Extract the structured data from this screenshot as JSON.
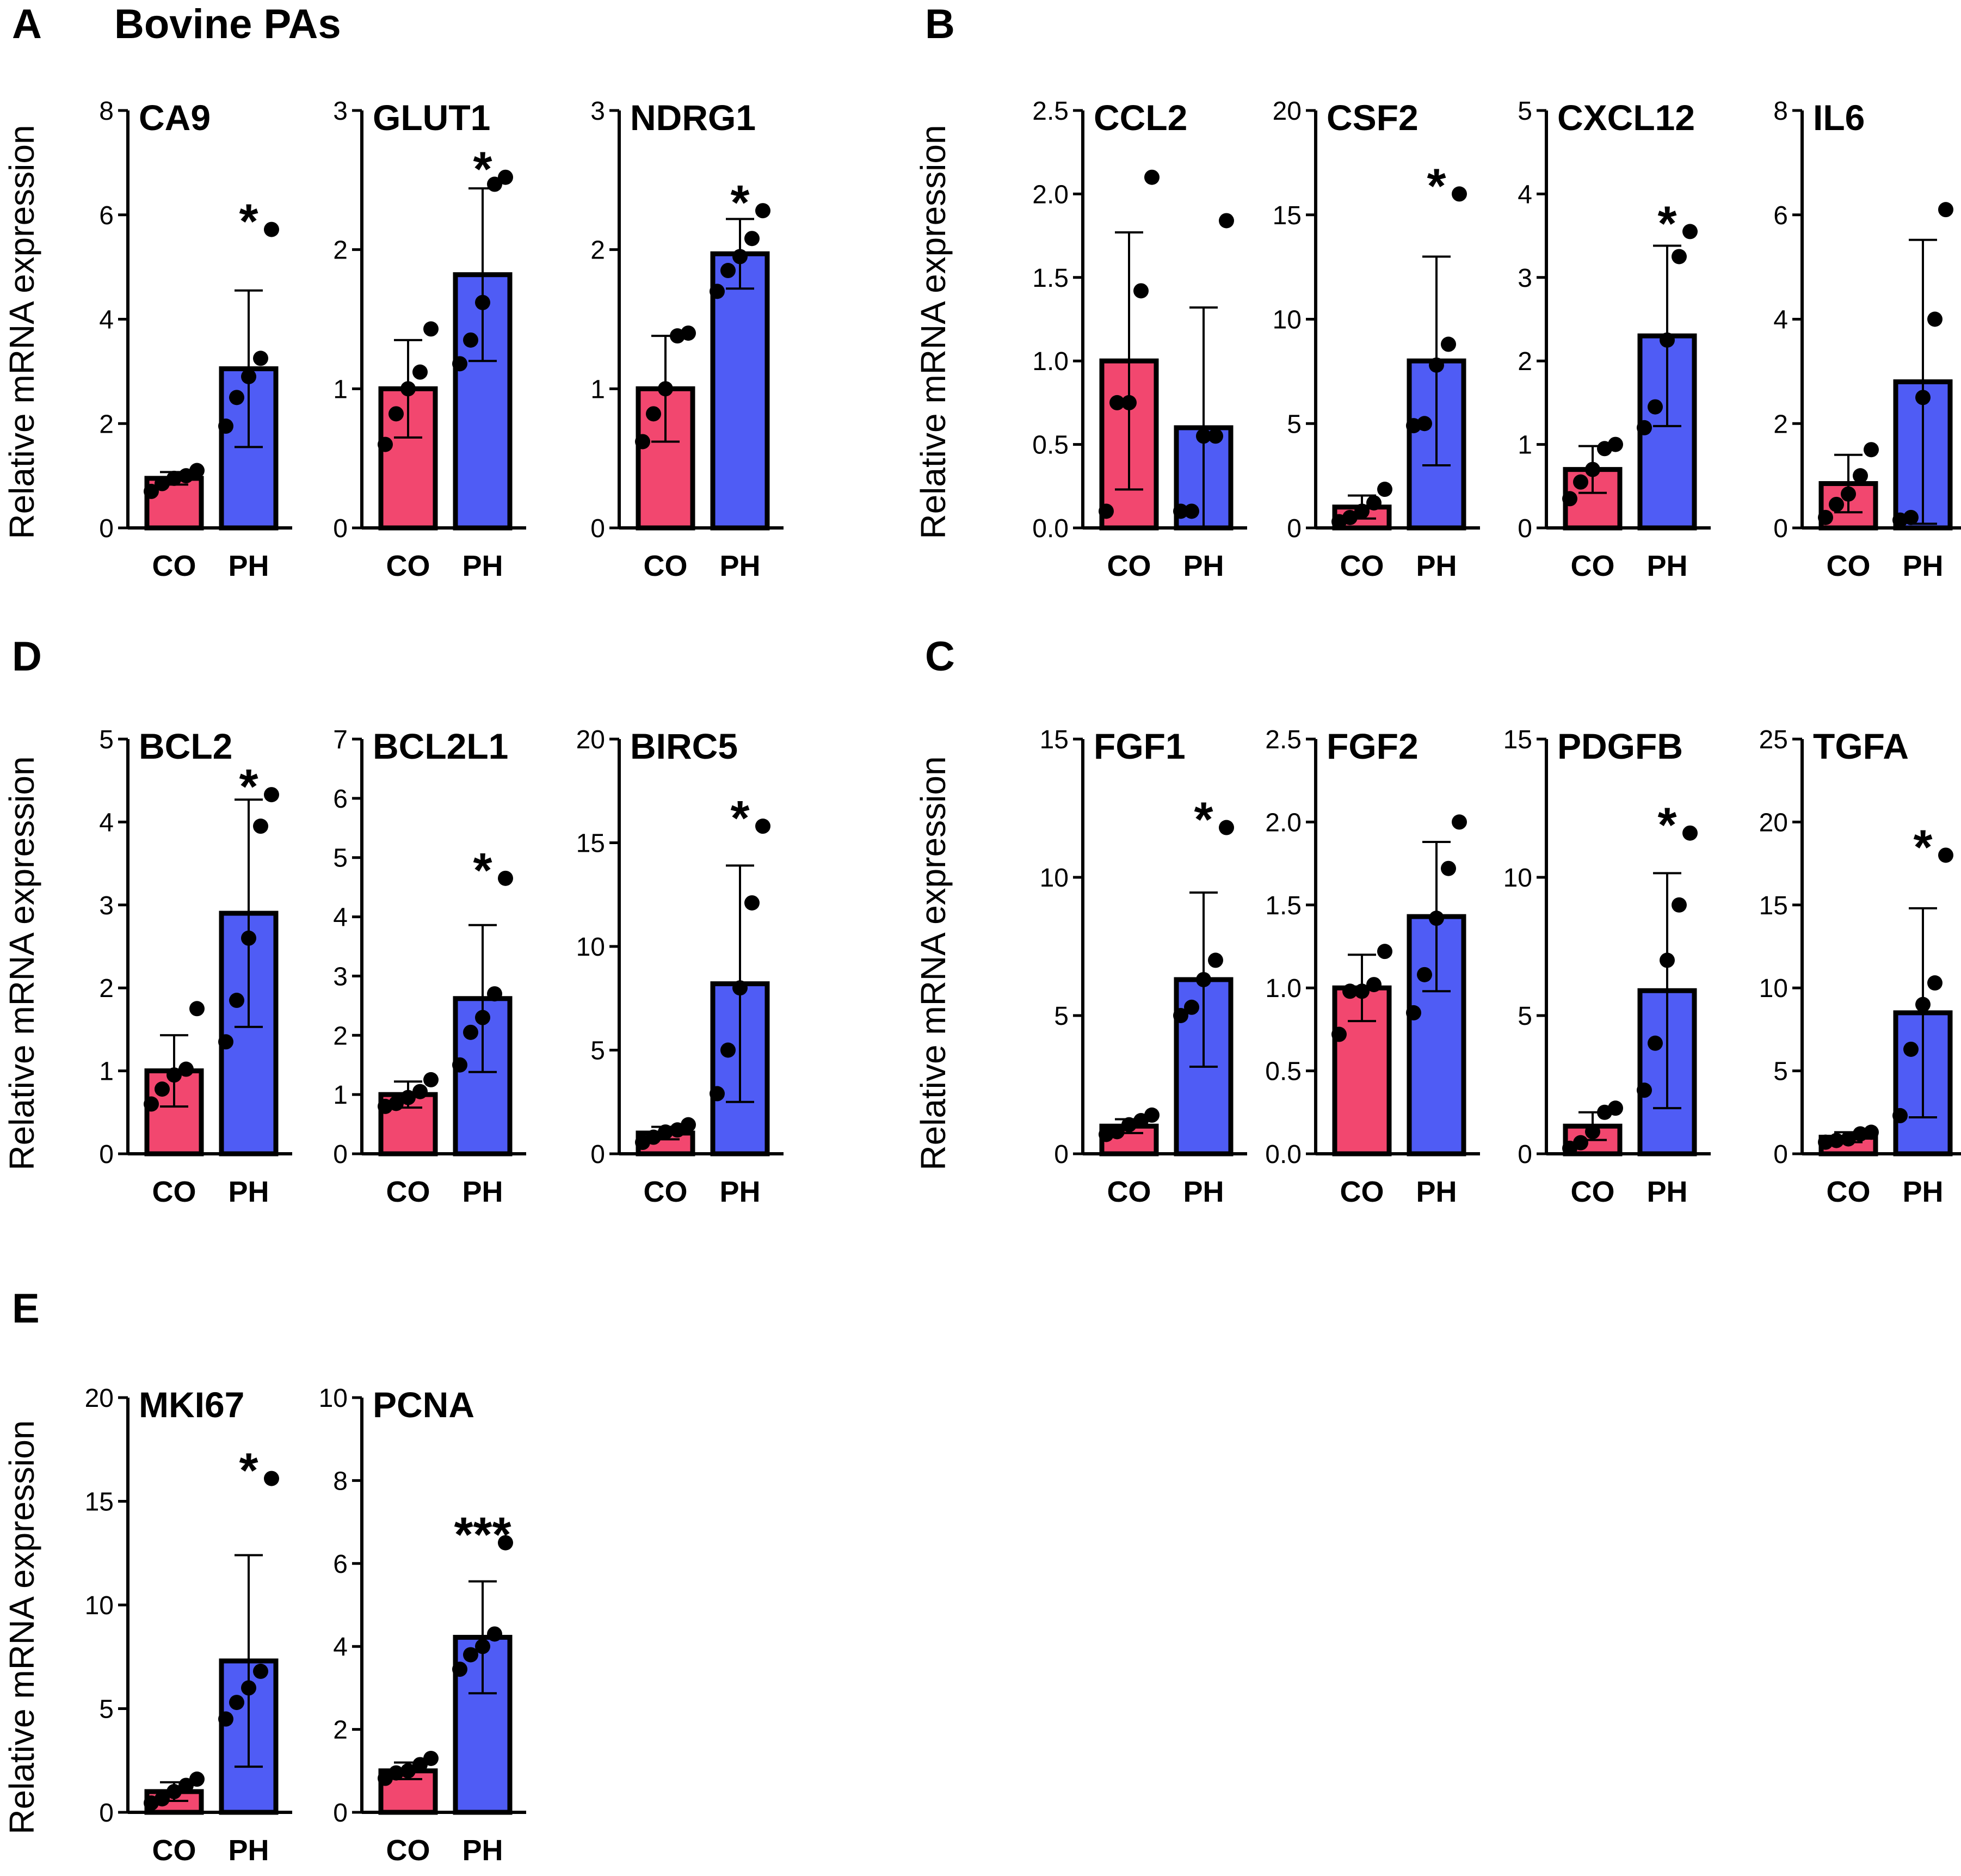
{
  "figure": {
    "title": "Bovine PAs",
    "ylabel": "Relative mRNA expression",
    "colors": {
      "CO": "#f2476f",
      "PH": "#4f5cf5"
    }
  },
  "chart_data": [
    {
      "type": "bar",
      "panel": "A",
      "title": "CA9",
      "categories": [
        "CO",
        "PH"
      ],
      "values": [
        0.95,
        3.05
      ],
      "errors": [
        0.12,
        1.5
      ],
      "points": [
        [
          0.7,
          0.85,
          0.95,
          1.0,
          1.1
        ],
        [
          1.95,
          2.5,
          2.9,
          3.25,
          5.72
        ]
      ],
      "ylim": [
        0,
        8
      ],
      "yticks": [
        "0",
        "2",
        "4",
        "6",
        "8"
      ],
      "significance": "*"
    },
    {
      "type": "bar",
      "panel": "A",
      "title": "GLUT1",
      "categories": [
        "CO",
        "PH"
      ],
      "values": [
        1.0,
        1.82
      ],
      "errors": [
        0.35,
        0.62
      ],
      "points": [
        [
          0.6,
          0.82,
          1.0,
          1.12,
          1.43
        ],
        [
          1.18,
          1.35,
          1.62,
          2.47,
          2.52
        ]
      ],
      "ylim": [
        0,
        3
      ],
      "yticks": [
        "0",
        "1",
        "2",
        "3"
      ],
      "significance": "*"
    },
    {
      "type": "bar",
      "panel": "A",
      "title": "NDRG1",
      "categories": [
        "CO",
        "PH"
      ],
      "values": [
        1.0,
        1.97
      ],
      "errors": [
        0.38,
        0.25
      ],
      "points": [
        [
          0.62,
          0.82,
          1.0,
          1.38,
          1.4
        ],
        [
          1.7,
          1.85,
          1.95,
          2.08,
          2.28
        ]
      ],
      "ylim": [
        0,
        3
      ],
      "yticks": [
        "0",
        "1",
        "2",
        "3"
      ],
      "significance": "*"
    },
    {
      "type": "bar",
      "panel": "B",
      "title": "CCL2",
      "categories": [
        "CO",
        "PH"
      ],
      "values": [
        1.0,
        0.6
      ],
      "errors": [
        0.77,
        0.72
      ],
      "points": [
        [
          0.1,
          0.75,
          0.75,
          1.42,
          2.1
        ],
        [
          0.1,
          0.1,
          0.55,
          0.55,
          1.84
        ]
      ],
      "ylim": [
        0,
        2.5
      ],
      "yticks": [
        "0.0",
        "0.5",
        "1.0",
        "1.5",
        "2.0",
        "2.5"
      ],
      "significance": ""
    },
    {
      "type": "bar",
      "panel": "B",
      "title": "CSF2",
      "categories": [
        "CO",
        "PH"
      ],
      "values": [
        1.0,
        8.0
      ],
      "errors": [
        0.55,
        5.0
      ],
      "points": [
        [
          0.3,
          0.5,
          0.8,
          1.2,
          1.85
        ],
        [
          4.9,
          5.0,
          7.8,
          8.8,
          16.0
        ]
      ],
      "ylim": [
        0,
        20
      ],
      "yticks": [
        "0",
        "5",
        "10",
        "15",
        "20"
      ],
      "significance": "*"
    },
    {
      "type": "bar",
      "panel": "B",
      "title": "CXCL12",
      "categories": [
        "CO",
        "PH"
      ],
      "values": [
        0.7,
        2.3
      ],
      "errors": [
        0.28,
        1.08
      ],
      "points": [
        [
          0.35,
          0.55,
          0.7,
          0.95,
          1.0
        ],
        [
          1.2,
          1.45,
          2.25,
          3.25,
          3.55
        ]
      ],
      "ylim": [
        0,
        5
      ],
      "yticks": [
        "0",
        "1",
        "2",
        "3",
        "4",
        "5"
      ],
      "significance": "*"
    },
    {
      "type": "bar",
      "panel": "B",
      "title": "IL6",
      "categories": [
        "CO",
        "PH"
      ],
      "values": [
        0.85,
        2.8
      ],
      "errors": [
        0.55,
        2.72
      ],
      "points": [
        [
          0.2,
          0.45,
          0.65,
          1.0,
          1.5
        ],
        [
          0.15,
          0.2,
          2.5,
          4.0,
          6.1
        ]
      ],
      "ylim": [
        0,
        8
      ],
      "yticks": [
        "0",
        "2",
        "4",
        "6",
        "8"
      ],
      "significance": ""
    },
    {
      "type": "bar",
      "panel": "D",
      "title": "BCL2",
      "categories": [
        "CO",
        "PH"
      ],
      "values": [
        1.0,
        2.9
      ],
      "errors": [
        0.43,
        1.37
      ],
      "points": [
        [
          0.6,
          0.78,
          0.95,
          1.02,
          1.75
        ],
        [
          1.35,
          1.85,
          2.6,
          3.95,
          4.33
        ]
      ],
      "ylim": [
        0,
        5
      ],
      "yticks": [
        "0",
        "1",
        "2",
        "3",
        "4",
        "5"
      ],
      "significance": "*"
    },
    {
      "type": "bar",
      "panel": "D",
      "title": "BCL2L1",
      "categories": [
        "CO",
        "PH"
      ],
      "values": [
        1.0,
        2.62
      ],
      "errors": [
        0.22,
        1.24
      ],
      "points": [
        [
          0.8,
          0.85,
          0.95,
          1.05,
          1.25
        ],
        [
          1.5,
          2.05,
          2.3,
          2.7,
          4.65
        ]
      ],
      "ylim": [
        0,
        7
      ],
      "yticks": [
        "0",
        "1",
        "2",
        "3",
        "4",
        "5",
        "6",
        "7"
      ],
      "significance": "*"
    },
    {
      "type": "bar",
      "panel": "D",
      "title": "BIRC5",
      "categories": [
        "CO",
        "PH"
      ],
      "values": [
        1.0,
        8.2
      ],
      "errors": [
        0.3,
        5.7
      ],
      "points": [
        [
          0.55,
          0.8,
          1.05,
          1.15,
          1.4
        ],
        [
          2.9,
          5.0,
          8.0,
          12.1,
          15.8
        ]
      ],
      "ylim": [
        0,
        20
      ],
      "yticks": [
        "0",
        "5",
        "10",
        "15",
        "20"
      ],
      "significance": "*"
    },
    {
      "type": "bar",
      "panel": "C",
      "title": "FGF1",
      "categories": [
        "CO",
        "PH"
      ],
      "values": [
        1.0,
        6.3
      ],
      "errors": [
        0.25,
        3.15
      ],
      "points": [
        [
          0.7,
          0.8,
          1.05,
          1.2,
          1.4
        ],
        [
          5.0,
          5.3,
          6.3,
          7.0,
          11.8
        ]
      ],
      "ylim": [
        0,
        15
      ],
      "yticks": [
        "0",
        "5",
        "10",
        "15"
      ],
      "significance": "*"
    },
    {
      "type": "bar",
      "panel": "C",
      "title": "FGF2",
      "categories": [
        "CO",
        "PH"
      ],
      "values": [
        1.0,
        1.43
      ],
      "errors": [
        0.2,
        0.45
      ],
      "points": [
        [
          0.72,
          0.98,
          0.98,
          1.02,
          1.22
        ],
        [
          0.85,
          1.08,
          1.42,
          1.72,
          2.0
        ]
      ],
      "ylim": [
        0,
        2.5
      ],
      "yticks": [
        "0.0",
        "0.5",
        "1.0",
        "1.5",
        "2.0",
        "2.5"
      ],
      "significance": ""
    },
    {
      "type": "bar",
      "panel": "C",
      "title": "PDGFB",
      "categories": [
        "CO",
        "PH"
      ],
      "values": [
        1.0,
        5.9
      ],
      "errors": [
        0.5,
        4.25
      ],
      "points": [
        [
          0.2,
          0.4,
          0.8,
          1.5,
          1.65
        ],
        [
          2.3,
          4.0,
          7.0,
          9.0,
          11.6
        ]
      ],
      "ylim": [
        0,
        15
      ],
      "yticks": [
        "0",
        "5",
        "10",
        "15"
      ],
      "significance": "*"
    },
    {
      "type": "bar",
      "panel": "C",
      "title": "TGFA",
      "categories": [
        "CO",
        "PH"
      ],
      "values": [
        1.0,
        8.5
      ],
      "errors": [
        0.3,
        6.3
      ],
      "points": [
        [
          0.7,
          0.8,
          0.9,
          1.2,
          1.3
        ],
        [
          2.3,
          6.3,
          9.0,
          10.3,
          18.0
        ]
      ],
      "ylim": [
        0,
        25
      ],
      "yticks": [
        "0",
        "5",
        "10",
        "15",
        "20",
        "25"
      ],
      "significance": "*"
    },
    {
      "type": "bar",
      "panel": "E",
      "title": "MKI67",
      "categories": [
        "CO",
        "PH"
      ],
      "values": [
        1.0,
        7.3
      ],
      "errors": [
        0.45,
        5.1
      ],
      "points": [
        [
          0.45,
          0.65,
          1.0,
          1.3,
          1.6
        ],
        [
          4.5,
          5.3,
          6.0,
          6.8,
          16.1
        ]
      ],
      "ylim": [
        0,
        20
      ],
      "yticks": [
        "0",
        "5",
        "10",
        "15",
        "20"
      ],
      "significance": "*"
    },
    {
      "type": "bar",
      "panel": "E",
      "title": "PCNA",
      "categories": [
        "CO",
        "PH"
      ],
      "values": [
        1.0,
        4.22
      ],
      "errors": [
        0.2,
        1.35
      ],
      "points": [
        [
          0.82,
          0.95,
          1.0,
          1.15,
          1.3
        ],
        [
          3.45,
          3.8,
          4.0,
          4.3,
          6.5
        ]
      ],
      "ylim": [
        0,
        10
      ],
      "yticks": [
        "0",
        "2",
        "4",
        "6",
        "8",
        "10"
      ],
      "significance": "***"
    }
  ]
}
